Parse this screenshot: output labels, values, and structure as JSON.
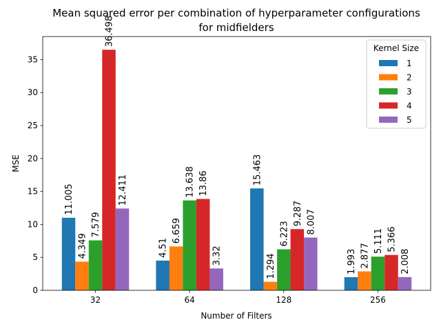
{
  "chart_data": {
    "type": "bar",
    "title": "Mean squared error per combination of hyperparameter configurations",
    "subtitle": "for midfielders",
    "xlabel": "Number of Filters",
    "ylabel": "MSE",
    "categories": [
      "32",
      "64",
      "128",
      "256"
    ],
    "ylim": [
      0,
      38.5
    ],
    "yticks": [
      0,
      5,
      10,
      15,
      20,
      25,
      30,
      35
    ],
    "grid": false,
    "legend": {
      "title": "Kernel Size",
      "placement": "upper-right"
    },
    "series": [
      {
        "name": "1",
        "color": "#1f77b4",
        "values": [
          11.005,
          4.51,
          15.463,
          1.993
        ],
        "labels": [
          "11.005",
          "4.51",
          "15.463",
          "1.993"
        ]
      },
      {
        "name": "2",
        "color": "#ff7f0e",
        "values": [
          4.349,
          6.659,
          1.294,
          2.877
        ],
        "labels": [
          "4.349",
          "6.659",
          "1.294",
          "2.877"
        ]
      },
      {
        "name": "3",
        "color": "#2ca02c",
        "values": [
          7.579,
          13.638,
          6.223,
          5.111
        ],
        "labels": [
          "7.579",
          "13.638",
          "6.223",
          "5.111"
        ]
      },
      {
        "name": "4",
        "color": "#d62728",
        "values": [
          36.498,
          13.86,
          9.287,
          5.366
        ],
        "labels": [
          "36.498",
          "13.86",
          "9.287",
          "5.366"
        ]
      },
      {
        "name": "5",
        "color": "#9467bd",
        "values": [
          12.411,
          3.32,
          8.007,
          2.008
        ],
        "labels": [
          "12.411",
          "3.32",
          "8.007",
          "2.008"
        ]
      }
    ]
  }
}
